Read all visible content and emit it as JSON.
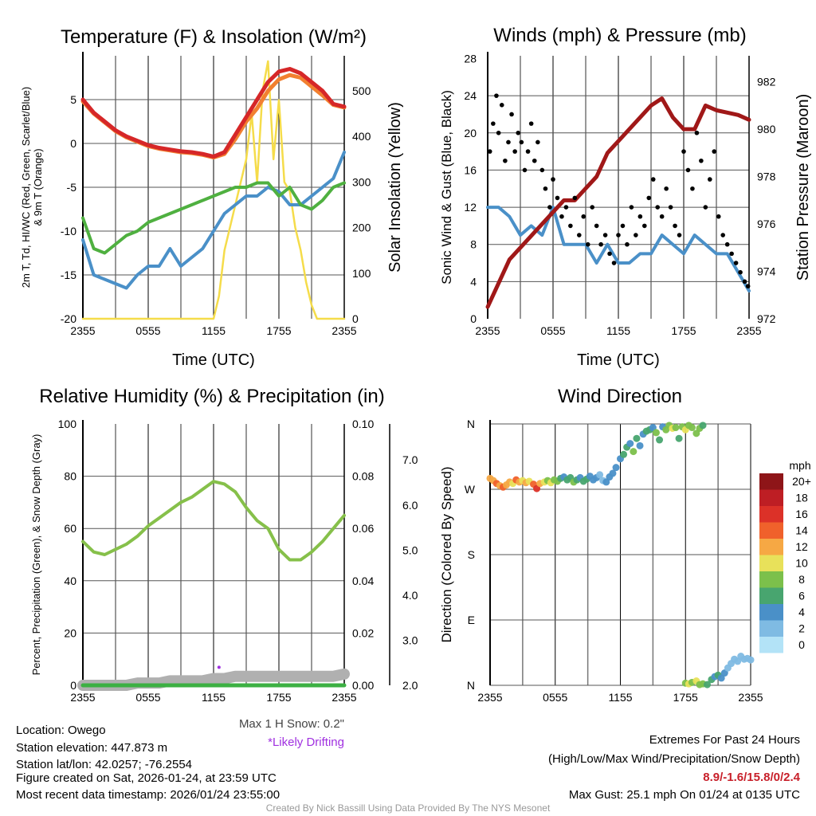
{
  "colors": {
    "temp": "#d62728",
    "temp9m": "#f28030",
    "dew": "#4fb040",
    "wc": "#4a90c8",
    "sun": "#f5dc4a",
    "pressure": "#a01818",
    "gust": "#000000",
    "rh": "#86c04a",
    "precip": "#3cb043",
    "snow": "#b0b0b0",
    "drift": "#a030e0",
    "extremes": "#c8202a"
  },
  "x_ticks": [
    "2355",
    "0555",
    "1155",
    "1755",
    "2355"
  ],
  "panels": {
    "temp": {
      "title": "Temperature (F) & Insolation (W/m²)",
      "ylabel1": "2m T, Td, HI/WC (Red, Green, Scarlet/Blue)",
      "ylabel2": "& 9m T (Orange)",
      "ylabel_right": "Solar Insolation (Yellow)",
      "xlabel": "Time (UTC)",
      "yticks": [
        "5",
        "0",
        "-5",
        "-10",
        "-15",
        "-20"
      ],
      "rticks": [
        "500",
        "400",
        "300",
        "200",
        "100",
        "0"
      ]
    },
    "wind": {
      "title": "Winds (mph) & Pressure (mb)",
      "ylabel": "Sonic Wind & Gust (Blue, Black)",
      "ylabel_right": "Station Pressure (Maroon)",
      "xlabel": "Time (UTC)",
      "yticks": [
        "28",
        "24",
        "20",
        "16",
        "12",
        "8",
        "4",
        "0"
      ],
      "rticks": [
        "982",
        "980",
        "978",
        "976",
        "974",
        "972"
      ]
    },
    "rh": {
      "title": "Relative Humidity (%) & Precipitation (in)",
      "ylabel": "Percent, Precipitation (Green), & Snow Depth (Gray)",
      "yticks": [
        "100",
        "80",
        "60",
        "40",
        "20",
        "0"
      ],
      "rticks": [
        "0.10",
        "0.08",
        "0.06",
        "0.04",
        "0.02",
        "0.00"
      ],
      "snowticks": [
        "7.0",
        "6.0",
        "5.0",
        "4.0",
        "3.0",
        "2.0"
      ],
      "max_snow": "Max 1 H Snow: 0.2\"",
      "drifting": "*Likely Drifting"
    },
    "dir": {
      "title": "Wind Direction",
      "ylabel": "Direction (Colored By Speed)",
      "yticks": [
        "N",
        "W",
        "S",
        "E",
        "N"
      ],
      "legend_title": "mph",
      "legend_labels": [
        "20+",
        "18",
        "16",
        "14",
        "12",
        "10",
        "8",
        "6",
        "4",
        "2",
        "0"
      ],
      "legend_colors": [
        "#8e1518",
        "#be1e24",
        "#dc3128",
        "#f0612b",
        "#f6a844",
        "#e8e15a",
        "#7cc04b",
        "#48a56f",
        "#4a90c8",
        "#7fbbe3",
        "#b3e3f7"
      ]
    }
  },
  "info": {
    "location": "Location: Owego",
    "elevation": "Station elevation: 447.873 m",
    "latlon": "Station lat/lon: 42.0257; -76.2554",
    "created": "Figure created on Sat, 2026-01-24, at 23:59 UTC",
    "recent": "Most recent data timestamp: 2026/01/24 23:55:00"
  },
  "extremes": {
    "title": "Extremes For Past 24 Hours",
    "subtitle": "(High/Low/Max Wind/Precipitation/Snow Depth)",
    "values": "8.9/-1.6/15.8/0/2.4",
    "max_gust": "Max Gust: 25.1 mph On 01/24 at 0135 UTC"
  },
  "credit": "Created By Nick Bassill Using Data Provided By The NYS Mesonet",
  "chart_data": [
    {
      "type": "line",
      "title": "Temperature (F) & Insolation (W/m²)",
      "x_hours_since_2355": [
        0,
        1,
        2,
        3,
        4,
        5,
        6,
        7,
        8,
        9,
        10,
        11,
        12,
        13,
        14,
        15,
        16,
        17,
        18,
        19,
        20,
        21,
        22,
        23,
        24
      ],
      "ylim": [
        -20,
        10
      ],
      "ylim_right": [
        0,
        577
      ],
      "series": [
        {
          "name": "2m T",
          "values": [
            5,
            3.5,
            2.5,
            1.5,
            0.8,
            0.3,
            -0.2,
            -0.5,
            -0.7,
            -0.9,
            -1,
            -1.2,
            -1.5,
            -1,
            1,
            3,
            5,
            7,
            8.2,
            8.5,
            8,
            7,
            6,
            4.5,
            4.2
          ]
        },
        {
          "name": "9m T",
          "values": [
            4.8,
            3.4,
            2.4,
            1.4,
            0.7,
            0.2,
            -0.3,
            -0.6,
            -0.8,
            -1,
            -1.1,
            -1.3,
            -1.6,
            -1.2,
            0.5,
            2.5,
            4,
            6,
            7.3,
            7.8,
            7.5,
            6.5,
            5.5,
            4.4,
            4.1
          ]
        },
        {
          "name": "Td",
          "values": [
            -8.5,
            -12,
            -12.5,
            -11.5,
            -10.5,
            -10,
            -9,
            -8.5,
            -8,
            -7.5,
            -7,
            -6.5,
            -6,
            -5.5,
            -5,
            -5,
            -4.5,
            -4.5,
            -6,
            -5,
            -7,
            -7.5,
            -6.5,
            -5,
            -4.5
          ]
        },
        {
          "name": "HI/WC",
          "values": [
            -11,
            -15,
            -15.5,
            -16,
            -16.5,
            -15,
            -14,
            -14,
            -12,
            -14,
            -13,
            -12,
            -10,
            -8,
            -7,
            -6,
            -6,
            -5,
            -5.5,
            -7,
            -7,
            -6,
            -5,
            -4,
            -1
          ]
        },
        {
          "name": "Solar Insolation",
          "axis": "right",
          "x": [
            0,
            12,
            12.5,
            13,
            13.5,
            14,
            14.5,
            15,
            15.5,
            16,
            16.5,
            17,
            17.5,
            18,
            18.5,
            19,
            19.5,
            20,
            20.5,
            21,
            21.5,
            24
          ],
          "values": [
            0,
            0,
            50,
            150,
            200,
            250,
            300,
            350,
            450,
            300,
            500,
            565,
            350,
            480,
            300,
            280,
            200,
            150,
            80,
            30,
            0,
            0
          ]
        }
      ]
    },
    {
      "type": "line",
      "title": "Winds (mph) & Pressure (mb)",
      "x_hours_since_2355": [
        0,
        1,
        2,
        3,
        4,
        5,
        6,
        7,
        8,
        9,
        10,
        11,
        12,
        13,
        14,
        15,
        16,
        17,
        18,
        19,
        20,
        21,
        22,
        23,
        24
      ],
      "ylim": [
        0,
        28
      ],
      "ylim_right": [
        972,
        983.1
      ],
      "series": [
        {
          "name": "Sonic Wind",
          "values": [
            12,
            12,
            11,
            9,
            10,
            9,
            12,
            8,
            8,
            8,
            6,
            8,
            6,
            6,
            7,
            7,
            9,
            8,
            7,
            9,
            8,
            7,
            7,
            5,
            3
          ]
        },
        {
          "name": "Station Pressure",
          "axis": "right",
          "values": [
            972.5,
            973.5,
            974.5,
            975,
            975.5,
            976,
            976.5,
            977,
            977,
            977.5,
            978,
            979,
            979.5,
            980,
            980.5,
            981,
            981.3,
            980.5,
            980,
            980,
            981,
            980.8,
            980.7,
            980.6,
            980.4
          ]
        },
        {
          "name": "Gust",
          "type": "scatter",
          "x": [
            0.2,
            0.5,
            0.8,
            1,
            1.3,
            1.6,
            1.9,
            2.2,
            2.5,
            2.8,
            3.1,
            3.4,
            3.7,
            4,
            4.3,
            4.6,
            5,
            5.3,
            5.7,
            6,
            6.4,
            6.8,
            7.2,
            7.6,
            8,
            8.4,
            8.8,
            9.2,
            9.6,
            10,
            10.4,
            10.8,
            11.2,
            11.6,
            12,
            12.4,
            12.8,
            13.2,
            13.6,
            14,
            14.4,
            14.8,
            15.2,
            15.6,
            16,
            16.4,
            16.8,
            17.2,
            17.6,
            18,
            18.4,
            18.8,
            19.2,
            19.6,
            20,
            20.4,
            20.8,
            21.2,
            21.6,
            22,
            22.4,
            22.8,
            23.2,
            23.6,
            23.9
          ],
          "values": [
            18,
            21,
            24,
            20,
            23,
            17,
            19,
            22,
            18,
            20,
            19,
            16,
            18,
            21,
            17,
            19,
            16,
            14,
            12,
            15,
            13,
            11,
            12,
            10,
            13,
            9,
            11,
            8,
            12,
            10,
            8,
            9,
            7,
            6,
            9,
            10,
            8,
            12,
            9,
            11,
            10,
            13,
            15,
            12,
            11,
            14,
            12,
            10,
            9,
            18,
            16,
            14,
            20,
            17,
            12,
            15,
            18,
            11,
            9,
            8,
            7,
            6,
            5,
            4,
            3.5
          ]
        }
      ]
    },
    {
      "type": "line",
      "title": "Relative Humidity (%) & Precipitation (in)",
      "x_hours_since_2355": [
        0,
        1,
        2,
        3,
        4,
        5,
        6,
        7,
        8,
        9,
        10,
        11,
        12,
        13,
        14,
        15,
        16,
        17,
        18,
        19,
        20,
        21,
        22,
        23,
        24
      ],
      "ylim": [
        0,
        100
      ],
      "ylim_right": [
        0,
        0.1
      ],
      "ylim_snow": [
        2.0,
        7.8
      ],
      "series": [
        {
          "name": "RH",
          "values": [
            55,
            51,
            50,
            52,
            54,
            57,
            61,
            64,
            67,
            70,
            72,
            75,
            78,
            77,
            74,
            68,
            63,
            60,
            52,
            48,
            48,
            51,
            55,
            60,
            65
          ]
        },
        {
          "name": "Precipitation",
          "values": [
            0,
            0,
            0,
            0,
            0,
            0,
            0,
            0,
            0,
            0,
            0,
            0,
            0,
            0,
            0,
            0,
            0,
            0,
            0,
            0,
            0,
            0,
            0,
            0,
            0
          ]
        },
        {
          "name": "Snow Depth",
          "values": [
            2.0,
            2.0,
            2.0,
            2.0,
            2.0,
            2.05,
            2.05,
            2.05,
            2.1,
            2.1,
            2.1,
            2.1,
            2.15,
            2.15,
            2.2,
            2.2,
            2.2,
            2.2,
            2.2,
            2.2,
            2.2,
            2.2,
            2.2,
            2.2,
            2.25
          ]
        },
        {
          "name": "Likely Drifting",
          "type": "scatter",
          "x": [
            12.5
          ],
          "values": [
            2.4
          ]
        }
      ]
    },
    {
      "type": "scatter",
      "title": "Wind Direction",
      "ylabel": "Direction (Colored By Speed)",
      "ylim_deg": [
        0,
        360
      ],
      "fields": [
        "hour",
        "direction_deg",
        "speed_mph"
      ],
      "points": [
        [
          0,
          285,
          12
        ],
        [
          0.3,
          282,
          13
        ],
        [
          0.6,
          278,
          14
        ],
        [
          0.9,
          275,
          12
        ],
        [
          1.2,
          273,
          15
        ],
        [
          1.5,
          276,
          13
        ],
        [
          1.8,
          280,
          12
        ],
        [
          2.1,
          278,
          11
        ],
        [
          2.4,
          283,
          14
        ],
        [
          2.7,
          280,
          12
        ],
        [
          3,
          282,
          10
        ],
        [
          3.3,
          279,
          12
        ],
        [
          3.6,
          281,
          11
        ],
        [
          4,
          277,
          14
        ],
        [
          4.3,
          271,
          17
        ],
        [
          4.6,
          278,
          13
        ],
        [
          5,
          280,
          10
        ],
        [
          5.3,
          282,
          9
        ],
        [
          5.6,
          279,
          10
        ],
        [
          5.9,
          283,
          8
        ],
        [
          6.2,
          281,
          9
        ],
        [
          6.5,
          285,
          7
        ],
        [
          6.8,
          287,
          5
        ],
        [
          7.1,
          283,
          6
        ],
        [
          7.4,
          286,
          7
        ],
        [
          7.7,
          280,
          8
        ],
        [
          8,
          283,
          6
        ],
        [
          8.3,
          286,
          5
        ],
        [
          8.6,
          281,
          7
        ],
        [
          8.9,
          284,
          6
        ],
        [
          9.2,
          288,
          4
        ],
        [
          9.5,
          283,
          5
        ],
        [
          9.8,
          286,
          4
        ],
        [
          10.1,
          290,
          3
        ],
        [
          10.4,
          282,
          3
        ],
        [
          10.7,
          280,
          5
        ],
        [
          11,
          287,
          5
        ],
        [
          11.3,
          292,
          4
        ],
        [
          11.6,
          300,
          4
        ],
        [
          12,
          312,
          5
        ],
        [
          12.3,
          318,
          6
        ],
        [
          12.6,
          328,
          7
        ],
        [
          12.9,
          333,
          5
        ],
        [
          13.2,
          322,
          8
        ],
        [
          13.5,
          340,
          6
        ],
        [
          13.8,
          330,
          4
        ],
        [
          14.1,
          346,
          5
        ],
        [
          14.4,
          350,
          6
        ],
        [
          14.7,
          352,
          7
        ],
        [
          15,
          355,
          4
        ],
        [
          15.3,
          348,
          8
        ],
        [
          15.6,
          338,
          7
        ],
        [
          15.9,
          356,
          5
        ],
        [
          16.2,
          352,
          9
        ],
        [
          16.5,
          358,
          8
        ],
        [
          16.8,
          354,
          10
        ],
        [
          17.1,
          355,
          9
        ],
        [
          17.4,
          340,
          6
        ],
        [
          17.7,
          356,
          8
        ],
        [
          18,
          352,
          10
        ],
        [
          18.3,
          358,
          9
        ],
        [
          18.6,
          355,
          8
        ],
        [
          19,
          347,
          8
        ],
        [
          19.3,
          354,
          9
        ],
        [
          19.6,
          358,
          6
        ],
        [
          18,
          3,
          8
        ],
        [
          18.3,
          2,
          10
        ],
        [
          18.6,
          4,
          9
        ],
        [
          19,
          6,
          10
        ],
        [
          19.3,
          1,
          8
        ],
        [
          19.6,
          2,
          9
        ],
        [
          20,
          1,
          6
        ],
        [
          20.4,
          8,
          7
        ],
        [
          20.7,
          12,
          5
        ],
        [
          21,
          14,
          7
        ],
        [
          21.3,
          10,
          4
        ],
        [
          21.6,
          17,
          4
        ],
        [
          21.9,
          24,
          3
        ],
        [
          22.2,
          30,
          2
        ],
        [
          22.5,
          36,
          2
        ],
        [
          22.8,
          33,
          3
        ],
        [
          23.1,
          40,
          2
        ],
        [
          23.4,
          36,
          2
        ],
        [
          23.7,
          37,
          2
        ],
        [
          24,
          35,
          2
        ]
      ]
    }
  ]
}
